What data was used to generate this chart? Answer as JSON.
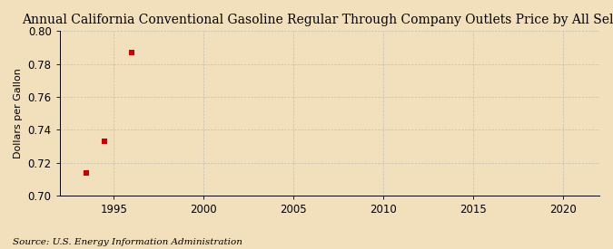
{
  "title": "Annual California Conventional Gasoline Regular Through Company Outlets Price by All Sellers",
  "ylabel": "Dollars per Gallon",
  "source_text": "Source: U.S. Energy Information Administration",
  "x_data": [
    1993.5,
    1994.5,
    1996.0
  ],
  "y_data": [
    0.714,
    0.733,
    0.787
  ],
  "marker_color": "#cc0000",
  "marker_size": 4,
  "xlim": [
    1992,
    2022
  ],
  "ylim": [
    0.7,
    0.8
  ],
  "xticks": [
    1995,
    2000,
    2005,
    2010,
    2015,
    2020
  ],
  "yticks": [
    0.7,
    0.72,
    0.74,
    0.76,
    0.78,
    0.8
  ],
  "background_color": "#f2e0bc",
  "grid_color": "#b0b0b0",
  "title_fontsize": 10,
  "label_fontsize": 8,
  "tick_fontsize": 8.5,
  "source_fontsize": 7.5
}
